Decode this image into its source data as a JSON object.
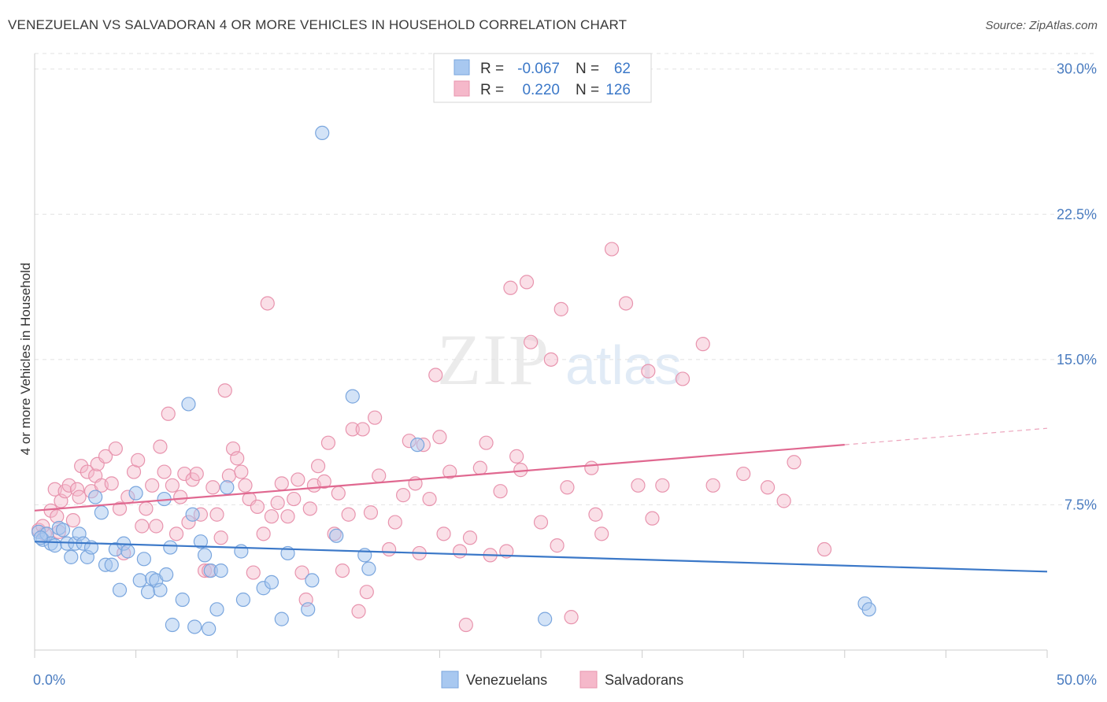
{
  "header": {
    "title": "VENEZUELAN VS SALVADORAN 4 OR MORE VEHICLES IN HOUSEHOLD CORRELATION CHART",
    "source": "Source: ZipAtlas.com"
  },
  "watermark": {
    "zip": "ZIP",
    "atlas": "atlas"
  },
  "colors": {
    "venezuelan_fill": "#a8c8f0",
    "venezuelan_stroke": "#7aa6de",
    "venezuelan_line": "#3b78c8",
    "salvadoran_fill": "#f5b8ca",
    "salvadoran_stroke": "#e894ae",
    "salvadoran_line": "#e06890",
    "axis_text": "#4a7cc0",
    "grid": "#e2e2e2"
  },
  "legend": {
    "rows": [
      {
        "r_label": "R =",
        "r_value": "-0.067",
        "n_label": "N =",
        "n_value": "62"
      },
      {
        "r_label": "R =",
        "r_value": "0.220",
        "n_label": "N =",
        "n_value": "126"
      }
    ]
  },
  "bottom_legend": {
    "items": [
      "Venezuelans",
      "Salvadorans"
    ]
  },
  "chart_data": {
    "type": "scatter",
    "title": "VENEZUELAN VS SALVADORAN 4 OR MORE VEHICLES IN HOUSEHOLD CORRELATION CHART",
    "xlabel": "",
    "ylabel": "4 or more Vehicles in Household",
    "xlim": [
      0,
      50
    ],
    "ylim": [
      0,
      30.8
    ],
    "x_ticks": [
      "0.0%",
      "50.0%"
    ],
    "y_ticks": [
      {
        "value": 7.5,
        "label": "7.5%"
      },
      {
        "value": 15.0,
        "label": "15.0%"
      },
      {
        "value": 22.5,
        "label": "22.5%"
      },
      {
        "value": 30.0,
        "label": "30.0%"
      }
    ],
    "grid": true,
    "legend_position": "top-center",
    "series": [
      {
        "name": "Venezuelans",
        "r": -0.067,
        "n": 62,
        "trend": {
          "x": [
            0,
            50
          ],
          "y": [
            5.6,
            4.05
          ]
        },
        "points": [
          [
            0.2,
            6.1
          ],
          [
            0.4,
            5.7
          ],
          [
            0.6,
            6.0
          ],
          [
            0.8,
            5.5
          ],
          [
            1.0,
            5.4
          ],
          [
            1.2,
            6.3
          ],
          [
            1.4,
            6.2
          ],
          [
            1.6,
            5.5
          ],
          [
            1.8,
            4.8
          ],
          [
            2.0,
            5.5
          ],
          [
            2.2,
            6.0
          ],
          [
            2.4,
            5.5
          ],
          [
            2.6,
            4.8
          ],
          [
            2.8,
            5.3
          ],
          [
            3.0,
            7.9
          ],
          [
            3.3,
            7.1
          ],
          [
            3.5,
            4.4
          ],
          [
            3.8,
            4.4
          ],
          [
            4.0,
            5.2
          ],
          [
            4.2,
            3.1
          ],
          [
            4.4,
            5.5
          ],
          [
            4.6,
            5.1
          ],
          [
            5.0,
            8.1
          ],
          [
            5.2,
            3.6
          ],
          [
            5.4,
            4.7
          ],
          [
            5.6,
            3.0
          ],
          [
            5.8,
            3.7
          ],
          [
            6.0,
            3.6
          ],
          [
            6.2,
            3.1
          ],
          [
            6.4,
            7.8
          ],
          [
            6.5,
            3.9
          ],
          [
            6.7,
            5.3
          ],
          [
            6.8,
            1.3
          ],
          [
            7.3,
            2.6
          ],
          [
            7.6,
            12.7
          ],
          [
            7.8,
            7.0
          ],
          [
            7.9,
            1.2
          ],
          [
            8.2,
            5.6
          ],
          [
            8.4,
            4.9
          ],
          [
            8.6,
            1.1
          ],
          [
            8.7,
            4.1
          ],
          [
            9.0,
            2.1
          ],
          [
            9.2,
            4.1
          ],
          [
            9.5,
            8.4
          ],
          [
            10.2,
            5.1
          ],
          [
            10.3,
            2.6
          ],
          [
            11.3,
            3.2
          ],
          [
            11.7,
            3.5
          ],
          [
            12.2,
            1.6
          ],
          [
            12.5,
            5.0
          ],
          [
            13.5,
            2.1
          ],
          [
            13.7,
            3.6
          ],
          [
            14.2,
            26.7
          ],
          [
            14.9,
            5.9
          ],
          [
            15.7,
            13.1
          ],
          [
            16.3,
            4.9
          ],
          [
            16.5,
            4.2
          ],
          [
            18.9,
            10.6
          ],
          [
            25.2,
            1.6
          ],
          [
            41.0,
            2.4
          ],
          [
            41.2,
            2.1
          ],
          [
            0.3,
            5.8
          ]
        ]
      },
      {
        "name": "Salvadorans",
        "r": 0.22,
        "n": 126,
        "trend": {
          "x": [
            0,
            40
          ],
          "y": [
            7.2,
            10.6
          ]
        },
        "trend_dashed": {
          "x": [
            40,
            50
          ],
          "y": [
            10.6,
            11.45
          ]
        },
        "points": [
          [
            0.2,
            6.2
          ],
          [
            0.5,
            6.0
          ],
          [
            0.8,
            7.2
          ],
          [
            1.0,
            8.3
          ],
          [
            1.2,
            6.1
          ],
          [
            1.3,
            7.7
          ],
          [
            1.5,
            8.2
          ],
          [
            1.7,
            8.5
          ],
          [
            1.9,
            6.7
          ],
          [
            2.1,
            8.3
          ],
          [
            2.2,
            7.9
          ],
          [
            2.3,
            9.5
          ],
          [
            2.6,
            9.2
          ],
          [
            2.8,
            8.2
          ],
          [
            3.0,
            9.0
          ],
          [
            3.1,
            9.6
          ],
          [
            3.3,
            8.5
          ],
          [
            3.5,
            10.0
          ],
          [
            3.8,
            8.6
          ],
          [
            4.0,
            10.4
          ],
          [
            4.2,
            7.3
          ],
          [
            4.4,
            5.0
          ],
          [
            4.6,
            7.9
          ],
          [
            4.9,
            9.2
          ],
          [
            5.1,
            9.8
          ],
          [
            5.3,
            6.4
          ],
          [
            5.5,
            7.3
          ],
          [
            5.8,
            8.5
          ],
          [
            6.0,
            6.4
          ],
          [
            6.2,
            10.5
          ],
          [
            6.4,
            9.2
          ],
          [
            6.6,
            12.2
          ],
          [
            6.8,
            8.5
          ],
          [
            7.0,
            6.0
          ],
          [
            7.2,
            7.9
          ],
          [
            7.4,
            9.1
          ],
          [
            7.6,
            6.6
          ],
          [
            7.8,
            8.8
          ],
          [
            8.0,
            9.1
          ],
          [
            8.2,
            7.0
          ],
          [
            8.4,
            4.1
          ],
          [
            8.6,
            4.1
          ],
          [
            8.8,
            8.4
          ],
          [
            9.0,
            7.0
          ],
          [
            9.2,
            5.8
          ],
          [
            9.4,
            13.4
          ],
          [
            9.6,
            9.0
          ],
          [
            9.8,
            10.4
          ],
          [
            10.0,
            9.9
          ],
          [
            10.2,
            9.2
          ],
          [
            10.4,
            8.5
          ],
          [
            10.6,
            7.8
          ],
          [
            10.8,
            4.0
          ],
          [
            11.0,
            7.4
          ],
          [
            11.3,
            6.0
          ],
          [
            11.5,
            17.9
          ],
          [
            11.7,
            6.9
          ],
          [
            12.0,
            7.6
          ],
          [
            12.2,
            8.6
          ],
          [
            12.5,
            6.9
          ],
          [
            12.8,
            7.8
          ],
          [
            13.0,
            8.8
          ],
          [
            13.2,
            4.0
          ],
          [
            13.4,
            2.6
          ],
          [
            13.6,
            7.3
          ],
          [
            13.8,
            8.5
          ],
          [
            14.0,
            9.5
          ],
          [
            14.3,
            8.7
          ],
          [
            14.5,
            10.7
          ],
          [
            14.8,
            6.0
          ],
          [
            15.0,
            8.1
          ],
          [
            15.2,
            4.1
          ],
          [
            15.5,
            7.0
          ],
          [
            15.7,
            11.4
          ],
          [
            16.0,
            2.0
          ],
          [
            16.2,
            11.4
          ],
          [
            16.4,
            3.0
          ],
          [
            16.6,
            7.1
          ],
          [
            16.8,
            12.0
          ],
          [
            17.0,
            9.0
          ],
          [
            17.5,
            5.2
          ],
          [
            17.8,
            6.6
          ],
          [
            18.2,
            8.0
          ],
          [
            18.5,
            10.8
          ],
          [
            18.8,
            8.6
          ],
          [
            19.0,
            5.0
          ],
          [
            19.2,
            10.6
          ],
          [
            19.5,
            7.8
          ],
          [
            19.8,
            14.2
          ],
          [
            20.0,
            11.0
          ],
          [
            20.2,
            6.0
          ],
          [
            20.5,
            9.2
          ],
          [
            21.0,
            5.1
          ],
          [
            21.3,
            1.3
          ],
          [
            21.5,
            5.8
          ],
          [
            22.0,
            9.4
          ],
          [
            22.3,
            10.7
          ],
          [
            22.5,
            4.9
          ],
          [
            23.0,
            8.2
          ],
          [
            23.3,
            5.1
          ],
          [
            23.5,
            18.7
          ],
          [
            23.8,
            10.0
          ],
          [
            24.0,
            9.3
          ],
          [
            24.3,
            19.0
          ],
          [
            24.5,
            15.9
          ],
          [
            25.0,
            6.6
          ],
          [
            25.5,
            15.0
          ],
          [
            25.8,
            5.4
          ],
          [
            26.0,
            17.6
          ],
          [
            26.3,
            8.4
          ],
          [
            26.5,
            1.7
          ],
          [
            27.5,
            9.4
          ],
          [
            27.7,
            7.0
          ],
          [
            28.0,
            6.0
          ],
          [
            28.5,
            20.7
          ],
          [
            29.2,
            17.9
          ],
          [
            29.8,
            8.5
          ],
          [
            30.3,
            14.4
          ],
          [
            30.5,
            6.8
          ],
          [
            31.0,
            8.5
          ],
          [
            32.0,
            14.0
          ],
          [
            33.0,
            15.8
          ],
          [
            33.5,
            8.5
          ],
          [
            35.0,
            9.1
          ],
          [
            36.2,
            8.4
          ],
          [
            37.0,
            7.7
          ],
          [
            37.5,
            9.7
          ],
          [
            39.0,
            5.2
          ],
          [
            0.4,
            6.4
          ],
          [
            1.1,
            6.9
          ]
        ]
      }
    ]
  }
}
